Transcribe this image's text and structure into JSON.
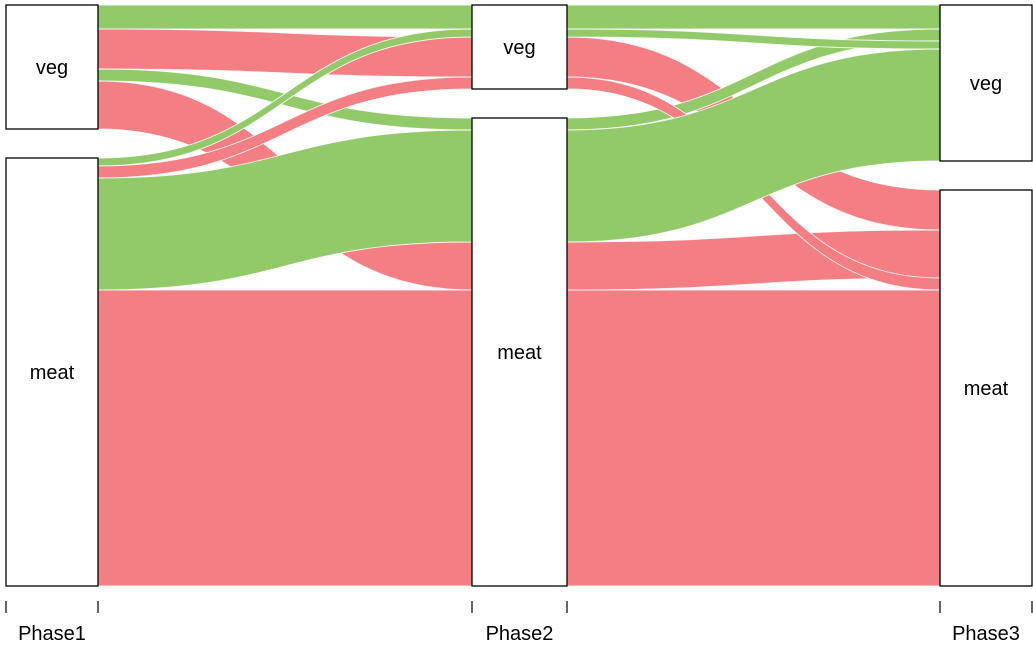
{
  "chart_data": {
    "type": "alluvial",
    "title": "",
    "axes": [
      "Phase1",
      "Phase2",
      "Phase3"
    ],
    "categories": [
      "veg",
      "meat"
    ],
    "colors": {
      "veg": "#92CA6A",
      "meat": "#F37E83"
    },
    "flows": [
      {
        "path": [
          "veg",
          "veg",
          "veg"
        ],
        "value": 3,
        "color_by": "veg"
      },
      {
        "path": [
          "veg",
          "veg",
          "meat"
        ],
        "value": 5,
        "color_by": "meat"
      },
      {
        "path": [
          "veg",
          "meat",
          "veg"
        ],
        "value": 1.5,
        "color_by": "veg"
      },
      {
        "path": [
          "veg",
          "meat",
          "meat"
        ],
        "value": 6,
        "color_by": "meat"
      },
      {
        "path": [
          "meat",
          "veg",
          "veg"
        ],
        "value": 1,
        "color_by": "veg"
      },
      {
        "path": [
          "meat",
          "veg",
          "meat"
        ],
        "value": 1.5,
        "color_by": "meat"
      },
      {
        "path": [
          "meat",
          "meat",
          "veg"
        ],
        "value": 14,
        "color_by": "veg"
      },
      {
        "path": [
          "meat",
          "meat",
          "meat"
        ],
        "value": 37,
        "color_by": "meat"
      }
    ]
  }
}
